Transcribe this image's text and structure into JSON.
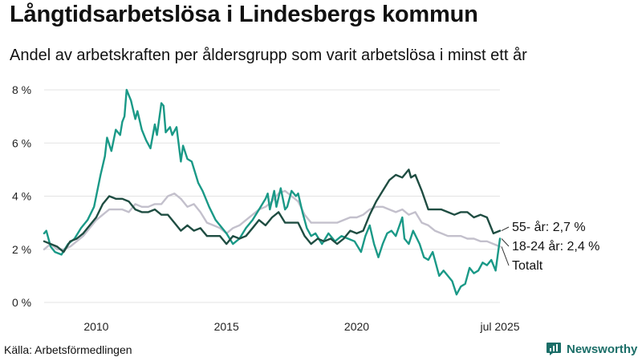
{
  "title": "Långtidsarbetslösa i Lindesbergs kommun",
  "subtitle": "Andel av arbetskraften per åldersgrupp som varit arbetslösa i minst ett år",
  "source": "Källa: Arbetsförmedlingen",
  "brand": "Newsworthy",
  "colors": {
    "age_18_24": "#1a9987",
    "age_55": "#1f4d42",
    "total": "#c3c0cc",
    "brand": "#1b6e68"
  },
  "chart_data": {
    "type": "line",
    "title": "Långtidsarbetslösa i Lindesbergs kommun",
    "subtitle": "Andel av arbetskraften per åldersgrupp som varit arbetslösa i minst ett år",
    "xlabel": "",
    "ylabel": "",
    "xlim": [
      "2008-01",
      "2025-07"
    ],
    "ylim": [
      0,
      8
    ],
    "grid": true,
    "x_tick_labels": [
      "2010",
      "2015",
      "2020",
      "jul 2025"
    ],
    "x_tick_dates": [
      "2010-01",
      "2015-01",
      "2020-01",
      "2025-07"
    ],
    "y_tick_values": [
      0,
      2,
      4,
      6,
      8
    ],
    "y_tick_labels": [
      "0 %",
      "2 %",
      "4 %",
      "6 %",
      "8 %"
    ],
    "end_labels": [
      "55- år: 2,7 %",
      "18-24 år: 2,4 %",
      "Totalt"
    ],
    "series": [
      {
        "name": "18-24 år",
        "color": "#1a9987",
        "points": [
          [
            "2008-01",
            2.6
          ],
          [
            "2008-02",
            2.7
          ],
          [
            "2008-04",
            2.1
          ],
          [
            "2008-06",
            1.9
          ],
          [
            "2008-09",
            1.8
          ],
          [
            "2008-12",
            2.2
          ],
          [
            "2009-03",
            2.4
          ],
          [
            "2009-06",
            2.8
          ],
          [
            "2009-09",
            3.1
          ],
          [
            "2009-12",
            3.6
          ],
          [
            "2010-03",
            4.8
          ],
          [
            "2010-05",
            5.5
          ],
          [
            "2010-06",
            6.2
          ],
          [
            "2010-08",
            5.7
          ],
          [
            "2010-10",
            6.5
          ],
          [
            "2010-12",
            6.3
          ],
          [
            "2011-01",
            6.8
          ],
          [
            "2011-02",
            7.0
          ],
          [
            "2011-03",
            8.0
          ],
          [
            "2011-05",
            7.6
          ],
          [
            "2011-07",
            6.9
          ],
          [
            "2011-08",
            7.2
          ],
          [
            "2011-10",
            6.5
          ],
          [
            "2011-12",
            6.1
          ],
          [
            "2012-02",
            5.8
          ],
          [
            "2012-04",
            6.7
          ],
          [
            "2012-05",
            6.3
          ],
          [
            "2012-07",
            7.5
          ],
          [
            "2012-08",
            7.4
          ],
          [
            "2012-09",
            6.4
          ],
          [
            "2012-11",
            6.6
          ],
          [
            "2012-12",
            6.3
          ],
          [
            "2013-02",
            6.6
          ],
          [
            "2013-04",
            5.3
          ],
          [
            "2013-05",
            5.9
          ],
          [
            "2013-07",
            5.4
          ],
          [
            "2013-09",
            5.3
          ],
          [
            "2013-12",
            4.5
          ],
          [
            "2014-02",
            4.2
          ],
          [
            "2014-05",
            3.6
          ],
          [
            "2014-08",
            3.1
          ],
          [
            "2014-10",
            2.9
          ],
          [
            "2015-01",
            2.6
          ],
          [
            "2015-04",
            2.2
          ],
          [
            "2015-07",
            2.4
          ],
          [
            "2015-10",
            2.8
          ],
          [
            "2016-01",
            3.1
          ],
          [
            "2016-04",
            3.5
          ],
          [
            "2016-07",
            3.9
          ],
          [
            "2016-08",
            4.1
          ],
          [
            "2016-09",
            3.5
          ],
          [
            "2016-11",
            4.2
          ],
          [
            "2016-12",
            3.6
          ],
          [
            "2017-02",
            4.3
          ],
          [
            "2017-04",
            3.5
          ],
          [
            "2017-05",
            3.6
          ],
          [
            "2017-07",
            4.2
          ],
          [
            "2017-09",
            4.0
          ],
          [
            "2017-10",
            4.1
          ],
          [
            "2017-12",
            3.4
          ],
          [
            "2018-02",
            2.8
          ],
          [
            "2018-04",
            2.5
          ],
          [
            "2018-06",
            2.6
          ],
          [
            "2018-09",
            2.2
          ],
          [
            "2018-12",
            2.6
          ],
          [
            "2019-03",
            2.3
          ],
          [
            "2019-06",
            2.5
          ],
          [
            "2019-09",
            2.4
          ],
          [
            "2019-12",
            2.3
          ],
          [
            "2020-03",
            1.9
          ],
          [
            "2020-05",
            2.5
          ],
          [
            "2020-07",
            2.9
          ],
          [
            "2020-09",
            2.2
          ],
          [
            "2020-11",
            1.7
          ],
          [
            "2021-01",
            2.2
          ],
          [
            "2021-03",
            2.6
          ],
          [
            "2021-05",
            2.7
          ],
          [
            "2021-07",
            2.5
          ],
          [
            "2021-10",
            3.2
          ],
          [
            "2021-11",
            2.4
          ],
          [
            "2022-01",
            2.2
          ],
          [
            "2022-03",
            2.7
          ],
          [
            "2022-06",
            2.2
          ],
          [
            "2022-08",
            1.7
          ],
          [
            "2022-10",
            1.6
          ],
          [
            "2022-12",
            1.9
          ],
          [
            "2023-03",
            1.0
          ],
          [
            "2023-05",
            1.2
          ],
          [
            "2023-07",
            1.0
          ],
          [
            "2023-09",
            0.8
          ],
          [
            "2023-11",
            0.3
          ],
          [
            "2024-01",
            0.6
          ],
          [
            "2024-03",
            0.7
          ],
          [
            "2024-05",
            1.3
          ],
          [
            "2024-07",
            1.1
          ],
          [
            "2024-09",
            1.2
          ],
          [
            "2024-11",
            1.5
          ],
          [
            "2025-01",
            1.4
          ],
          [
            "2025-03",
            1.6
          ],
          [
            "2025-05",
            1.2
          ],
          [
            "2025-07",
            2.4
          ]
        ]
      },
      {
        "name": "55- år",
        "color": "#1f4d42",
        "points": [
          [
            "2008-01",
            2.3
          ],
          [
            "2008-04",
            2.2
          ],
          [
            "2008-07",
            2.1
          ],
          [
            "2008-10",
            1.9
          ],
          [
            "2009-01",
            2.3
          ],
          [
            "2009-04",
            2.4
          ],
          [
            "2009-07",
            2.6
          ],
          [
            "2009-10",
            2.9
          ],
          [
            "2010-01",
            3.2
          ],
          [
            "2010-04",
            3.7
          ],
          [
            "2010-07",
            4.0
          ],
          [
            "2010-10",
            3.9
          ],
          [
            "2011-01",
            3.9
          ],
          [
            "2011-04",
            3.8
          ],
          [
            "2011-07",
            3.5
          ],
          [
            "2011-10",
            3.4
          ],
          [
            "2012-01",
            3.4
          ],
          [
            "2012-04",
            3.5
          ],
          [
            "2012-07",
            3.3
          ],
          [
            "2012-10",
            3.3
          ],
          [
            "2013-01",
            3.0
          ],
          [
            "2013-04",
            2.7
          ],
          [
            "2013-07",
            2.9
          ],
          [
            "2013-10",
            2.7
          ],
          [
            "2014-01",
            2.8
          ],
          [
            "2014-04",
            2.5
          ],
          [
            "2014-07",
            2.5
          ],
          [
            "2014-10",
            2.5
          ],
          [
            "2015-01",
            2.2
          ],
          [
            "2015-04",
            2.5
          ],
          [
            "2015-07",
            2.4
          ],
          [
            "2015-10",
            2.5
          ],
          [
            "2016-01",
            2.8
          ],
          [
            "2016-04",
            3.1
          ],
          [
            "2016-07",
            2.9
          ],
          [
            "2016-10",
            3.2
          ],
          [
            "2017-01",
            3.4
          ],
          [
            "2017-04",
            3.0
          ],
          [
            "2017-07",
            3.0
          ],
          [
            "2017-10",
            3.0
          ],
          [
            "2018-01",
            2.5
          ],
          [
            "2018-04",
            2.2
          ],
          [
            "2018-07",
            2.4
          ],
          [
            "2018-10",
            2.3
          ],
          [
            "2019-01",
            2.4
          ],
          [
            "2019-04",
            2.2
          ],
          [
            "2019-07",
            2.4
          ],
          [
            "2019-10",
            2.7
          ],
          [
            "2020-01",
            2.6
          ],
          [
            "2020-04",
            2.7
          ],
          [
            "2020-07",
            3.3
          ],
          [
            "2020-10",
            3.8
          ],
          [
            "2021-01",
            4.2
          ],
          [
            "2021-04",
            4.6
          ],
          [
            "2021-07",
            4.8
          ],
          [
            "2021-10",
            4.7
          ],
          [
            "2022-01",
            5.0
          ],
          [
            "2022-02",
            4.7
          ],
          [
            "2022-04",
            4.8
          ],
          [
            "2022-07",
            4.2
          ],
          [
            "2022-10",
            3.5
          ],
          [
            "2023-01",
            3.5
          ],
          [
            "2023-04",
            3.5
          ],
          [
            "2023-07",
            3.4
          ],
          [
            "2023-10",
            3.3
          ],
          [
            "2024-01",
            3.4
          ],
          [
            "2024-04",
            3.4
          ],
          [
            "2024-07",
            3.2
          ],
          [
            "2024-10",
            3.3
          ],
          [
            "2025-01",
            3.2
          ],
          [
            "2025-04",
            2.6
          ],
          [
            "2025-07",
            2.7
          ]
        ]
      },
      {
        "name": "Totalt",
        "color": "#c3c0cc",
        "points": [
          [
            "2008-01",
            2.0
          ],
          [
            "2008-04",
            2.2
          ],
          [
            "2008-07",
            2.0
          ],
          [
            "2008-10",
            2.0
          ],
          [
            "2009-01",
            2.1
          ],
          [
            "2009-04",
            2.3
          ],
          [
            "2009-07",
            2.5
          ],
          [
            "2009-10",
            2.8
          ],
          [
            "2010-01",
            3.1
          ],
          [
            "2010-04",
            3.3
          ],
          [
            "2010-07",
            3.5
          ],
          [
            "2010-10",
            3.5
          ],
          [
            "2011-01",
            3.5
          ],
          [
            "2011-04",
            3.4
          ],
          [
            "2011-07",
            3.7
          ],
          [
            "2011-10",
            3.6
          ],
          [
            "2012-01",
            3.6
          ],
          [
            "2012-04",
            3.7
          ],
          [
            "2012-07",
            3.7
          ],
          [
            "2012-10",
            4.0
          ],
          [
            "2013-01",
            4.1
          ],
          [
            "2013-04",
            3.9
          ],
          [
            "2013-07",
            3.6
          ],
          [
            "2013-10",
            3.7
          ],
          [
            "2014-01",
            3.4
          ],
          [
            "2014-04",
            3.0
          ],
          [
            "2014-07",
            2.9
          ],
          [
            "2014-10",
            2.8
          ],
          [
            "2015-01",
            2.6
          ],
          [
            "2015-04",
            2.8
          ],
          [
            "2015-07",
            2.9
          ],
          [
            "2015-10",
            3.1
          ],
          [
            "2016-01",
            3.3
          ],
          [
            "2016-04",
            3.5
          ],
          [
            "2016-07",
            3.6
          ],
          [
            "2016-10",
            3.8
          ],
          [
            "2017-01",
            4.1
          ],
          [
            "2017-04",
            4.2
          ],
          [
            "2017-07",
            4.0
          ],
          [
            "2017-10",
            3.8
          ],
          [
            "2018-01",
            3.3
          ],
          [
            "2018-04",
            3.0
          ],
          [
            "2018-07",
            3.0
          ],
          [
            "2018-10",
            3.0
          ],
          [
            "2019-01",
            3.0
          ],
          [
            "2019-04",
            3.0
          ],
          [
            "2019-07",
            3.1
          ],
          [
            "2019-10",
            3.2
          ],
          [
            "2020-01",
            3.2
          ],
          [
            "2020-04",
            3.3
          ],
          [
            "2020-07",
            3.5
          ],
          [
            "2020-10",
            3.6
          ],
          [
            "2021-01",
            3.6
          ],
          [
            "2021-04",
            3.5
          ],
          [
            "2021-07",
            3.4
          ],
          [
            "2021-10",
            3.5
          ],
          [
            "2022-01",
            3.3
          ],
          [
            "2022-04",
            3.4
          ],
          [
            "2022-07",
            3.0
          ],
          [
            "2022-10",
            2.9
          ],
          [
            "2023-01",
            2.7
          ],
          [
            "2023-04",
            2.6
          ],
          [
            "2023-07",
            2.5
          ],
          [
            "2023-10",
            2.5
          ],
          [
            "2024-01",
            2.5
          ],
          [
            "2024-04",
            2.4
          ],
          [
            "2024-07",
            2.4
          ],
          [
            "2024-10",
            2.3
          ],
          [
            "2025-01",
            2.3
          ],
          [
            "2025-04",
            2.2
          ],
          [
            "2025-07",
            2.1
          ]
        ]
      }
    ]
  }
}
